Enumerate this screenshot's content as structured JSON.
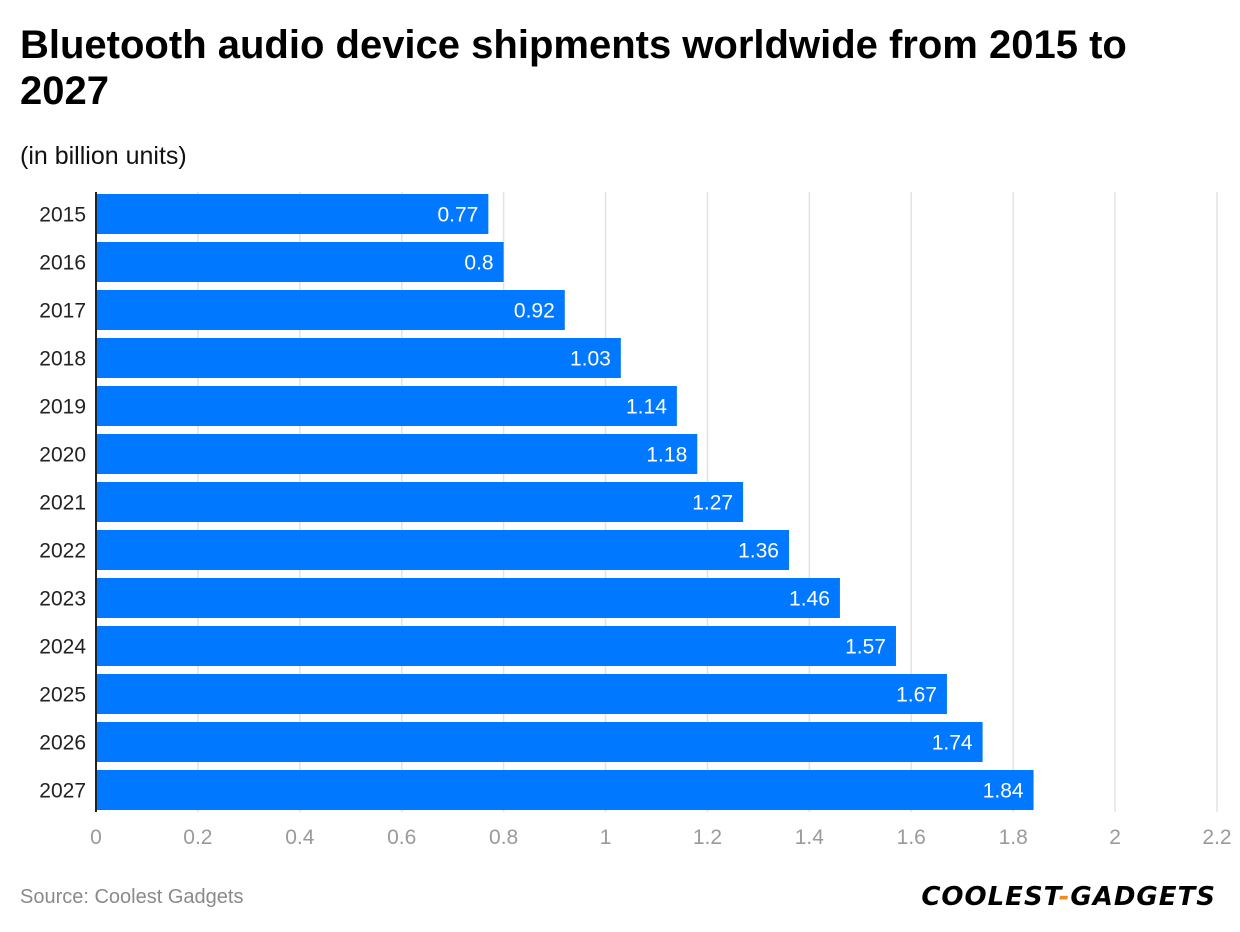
{
  "header": {
    "title": "Bluetooth audio device shipments worldwide from 2015 to 2027",
    "subtitle": "(in billion units)"
  },
  "footer": {
    "source": "Source: Coolest Gadgets",
    "logo_left": "COOLEST",
    "logo_sep": "-",
    "logo_right": "GADGETS"
  },
  "colors": {
    "bar": "#0078ff",
    "grid": "#e3e3e3",
    "axis": "#222222",
    "logo_accent": "#f08a24"
  },
  "chart_data": {
    "type": "bar",
    "orientation": "horizontal",
    "title": "Bluetooth audio device shipments worldwide from 2015 to 2027",
    "subtitle": "(in billion units)",
    "categories": [
      "2015",
      "2016",
      "2017",
      "2018",
      "2019",
      "2020",
      "2021",
      "2022",
      "2023",
      "2024",
      "2025",
      "2026",
      "2027"
    ],
    "values": [
      0.77,
      0.8,
      0.92,
      1.03,
      1.14,
      1.18,
      1.27,
      1.36,
      1.46,
      1.57,
      1.67,
      1.74,
      1.84
    ],
    "value_labels": [
      "0.77",
      "0.8",
      "0.92",
      "1.03",
      "1.14",
      "1.18",
      "1.27",
      "1.36",
      "1.46",
      "1.57",
      "1.67",
      "1.74",
      "1.84"
    ],
    "xlim": [
      0,
      2.2
    ],
    "xticks": [
      0,
      0.2,
      0.4,
      0.6,
      0.8,
      1,
      1.2,
      1.4,
      1.6,
      1.8,
      2,
      2.2
    ],
    "xtick_labels": [
      "0",
      "0.2",
      "0.4",
      "0.6",
      "0.8",
      "1",
      "1.2",
      "1.4",
      "1.6",
      "1.8",
      "2",
      "2.2"
    ],
    "grid": true,
    "xlabel": "",
    "ylabel": ""
  }
}
